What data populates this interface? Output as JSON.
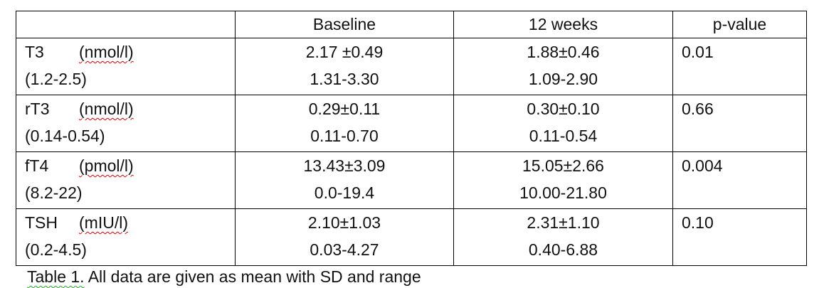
{
  "table": {
    "header": [
      "Baseline",
      "12 weeks",
      "p-value"
    ],
    "rows": [
      {
        "name": "T3",
        "unit": "(nmol/l)",
        "reference": "(1.2-2.5)",
        "baseline_mean": "2.17 ±0.49",
        "baseline_range": "1.31-3.30",
        "week12_mean": "1.88±0.46",
        "week12_range": "1.09-2.90",
        "p": "0.01"
      },
      {
        "name": "rT3",
        "unit": "(nmol/l)",
        "reference": "(0.14-0.54)",
        "baseline_mean": "0.29±0.11",
        "baseline_range": "0.11-0.70",
        "week12_mean": "0.30±0.10",
        "week12_range": "0.11-0.54",
        "p": "0.66"
      },
      {
        "name": "fT4",
        "unit": "(pmol/l)",
        "reference": "(8.2-22)",
        "baseline_mean": "13.43±3.09",
        "baseline_range": "0.0-19.4",
        "week12_mean": "15.05±2.66",
        "week12_range": "10.00-21.80",
        "p": "0.004"
      },
      {
        "name": "TSH",
        "unit": "(mIU/l)",
        "reference": "(0.2-4.5)",
        "baseline_mean": "2.10±1.03",
        "baseline_range": "0.03-4.27",
        "week12_mean": "2.31±1.10",
        "week12_range": "0.40-6.88",
        "p": "0.10"
      }
    ]
  },
  "caption": {
    "label": "Table 1.",
    "text": "All data are given as mean with SD and range"
  }
}
